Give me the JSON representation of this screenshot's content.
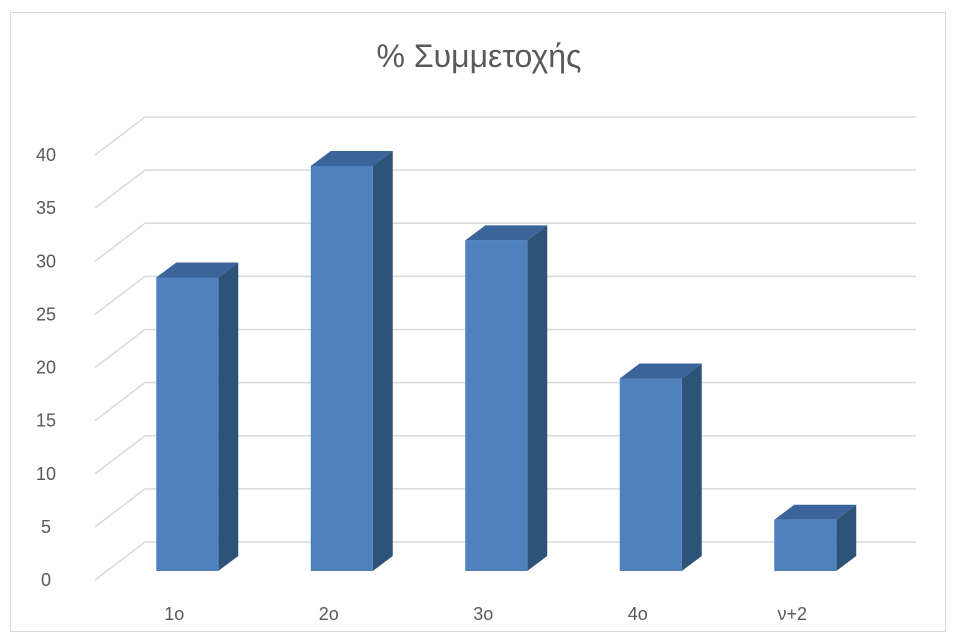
{
  "chart_data": {
    "type": "bar",
    "title": "% Συμμετοχής",
    "categories": [
      "1ο",
      "2ο",
      "3ο",
      "4ο",
      "ν+2"
    ],
    "values": [
      28,
      38.5,
      31.5,
      18.5,
      5.2
    ],
    "ylim": [
      0,
      40
    ],
    "yticks": [
      0,
      5,
      10,
      15,
      20,
      25,
      30,
      35,
      40
    ],
    "grid": true,
    "three_d": true,
    "legend": "none",
    "colors": {
      "bar_front": "#4f81bd",
      "bar_top": "#3a649a",
      "bar_side": "#2e5378",
      "grid": "#d9d9d9",
      "text": "#595959"
    }
  }
}
